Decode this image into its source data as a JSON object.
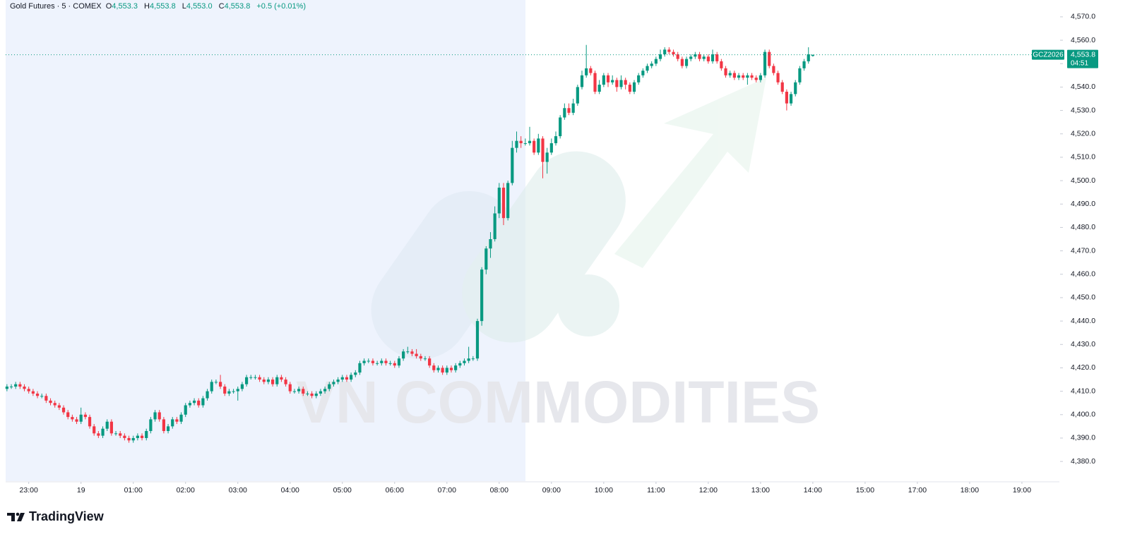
{
  "chart_data": {
    "type": "candlestick",
    "title": "Gold Futures · 5 · COMEX",
    "ohlc_names": [
      "O",
      "H",
      "L",
      "C"
    ],
    "ohlc_labels": [
      "4,553.3",
      "4,553.8",
      "4,553.0",
      "4,553.8"
    ],
    "change": "+0.5 (+0.01%)",
    "up_color": "#089981",
    "down_color": "#f23645",
    "symbol": "GCZ2026",
    "last_price_label": "4,553.8",
    "countdown": "04:51",
    "watermark": "VN COMMODITIES",
    "source": "TradingView",
    "xlim": [
      -0.3,
      241.6
    ],
    "xticks": [
      {
        "value": 5,
        "label": "23:00"
      },
      {
        "value": 17,
        "label": "19"
      },
      {
        "value": 29,
        "label": "01:00"
      },
      {
        "value": 41,
        "label": "02:00"
      },
      {
        "value": 53,
        "label": "03:00"
      },
      {
        "value": 65,
        "label": "04:00"
      },
      {
        "value": 77,
        "label": "05:00"
      },
      {
        "value": 89,
        "label": "06:00"
      },
      {
        "value": 101,
        "label": "07:00"
      },
      {
        "value": 113,
        "label": "08:00"
      },
      {
        "value": 125,
        "label": "09:00"
      },
      {
        "value": 137,
        "label": "10:00"
      },
      {
        "value": 149,
        "label": "11:00"
      },
      {
        "value": 161,
        "label": "12:00"
      },
      {
        "value": 173,
        "label": "13:00"
      },
      {
        "value": 185,
        "label": "14:00"
      },
      {
        "value": 197,
        "label": "15:00"
      },
      {
        "value": 209,
        "label": "17:00"
      },
      {
        "value": 221,
        "label": "18:00"
      },
      {
        "value": 233,
        "label": "19:00"
      }
    ],
    "ylim": [
      4371.6,
      4577.2
    ],
    "yticks": [
      {
        "value": 4380,
        "label": "4,380.0"
      },
      {
        "value": 4390,
        "label": "4,390.0"
      },
      {
        "value": 4400,
        "label": "4,400.0"
      },
      {
        "value": 4410,
        "label": "4,410.0"
      },
      {
        "value": 4420,
        "label": "4,420.0"
      },
      {
        "value": 4430,
        "label": "4,430.0"
      },
      {
        "value": 4440,
        "label": "4,440.0"
      },
      {
        "value": 4450,
        "label": "4,450.0"
      },
      {
        "value": 4460,
        "label": "4,460.0"
      },
      {
        "value": 4470,
        "label": "4,470.0"
      },
      {
        "value": 4480,
        "label": "4,480.0"
      },
      {
        "value": 4490,
        "label": "4,490.0"
      },
      {
        "value": 4500,
        "label": "4,500.0"
      },
      {
        "value": 4510,
        "label": "4,510.0"
      },
      {
        "value": 4520,
        "label": "4,520.0"
      },
      {
        "value": 4530,
        "label": "4,530.0"
      },
      {
        "value": 4540,
        "label": "4,540.0"
      },
      {
        "value": 4550,
        "label": "4,550.0"
      },
      {
        "value": 4560,
        "label": "4,560.0"
      },
      {
        "value": 4570,
        "label": "4,570.0"
      }
    ],
    "ohlc": [
      [
        4411,
        4413,
        4410,
        4412
      ],
      [
        4412,
        4413,
        4411,
        4412
      ],
      [
        4412,
        4414,
        4411,
        4413
      ],
      [
        4413,
        4414,
        4411,
        4412
      ],
      [
        4412,
        4413,
        4410,
        4411
      ],
      [
        4411,
        4412,
        4409,
        4410
      ],
      [
        4410,
        4411,
        4408,
        4409
      ],
      [
        4409,
        4410,
        4407,
        4408
      ],
      [
        4408,
        4409,
        4407,
        4408
      ],
      [
        4408,
        4409,
        4405,
        4406
      ],
      [
        4406,
        4407,
        4404,
        4405
      ],
      [
        4405,
        4406,
        4403,
        4404
      ],
      [
        4404,
        4405,
        4402,
        4403
      ],
      [
        4403,
        4404,
        4400,
        4401
      ],
      [
        4401,
        4402,
        4398,
        4399
      ],
      [
        4399,
        4400,
        4397,
        4398
      ],
      [
        4398,
        4399,
        4396,
        4397
      ],
      [
        4397,
        4403,
        4396,
        4400
      ],
      [
        4400,
        4401,
        4398,
        4399
      ],
      [
        4399,
        4400,
        4394,
        4395
      ],
      [
        4395,
        4396,
        4391,
        4392
      ],
      [
        4392,
        4393,
        4390,
        4391
      ],
      [
        4391,
        4395,
        4390,
        4394
      ],
      [
        4394,
        4398,
        4393,
        4397
      ],
      [
        4397,
        4398,
        4391,
        4392
      ],
      [
        4392,
        4393,
        4391,
        4392
      ],
      [
        4392,
        4393,
        4390,
        4391
      ],
      [
        4391,
        4392,
        4389,
        4390
      ],
      [
        4390,
        4391,
        4388,
        4389
      ],
      [
        4389,
        4391,
        4388,
        4390
      ],
      [
        4390,
        4392,
        4389,
        4391
      ],
      [
        4391,
        4392,
        4389,
        4390
      ],
      [
        4390,
        4394,
        4389,
        4393
      ],
      [
        4393,
        4399,
        4392,
        4398
      ],
      [
        4398,
        4402,
        4397,
        4401
      ],
      [
        4401,
        4402,
        4397,
        4398
      ],
      [
        4398,
        4399,
        4392,
        4393
      ],
      [
        4393,
        4396,
        4392,
        4395
      ],
      [
        4395,
        4399,
        4394,
        4398
      ],
      [
        4398,
        4399,
        4396,
        4397
      ],
      [
        4397,
        4401,
        4396,
        4400
      ],
      [
        4400,
        4405,
        4399,
        4404
      ],
      [
        4404,
        4406,
        4403,
        4405
      ],
      [
        4405,
        4407,
        4404,
        4406
      ],
      [
        4406,
        4407,
        4403,
        4404
      ],
      [
        4404,
        4408,
        4403,
        4407
      ],
      [
        4407,
        4411,
        4406,
        4410
      ],
      [
        4410,
        4415,
        4409,
        4414
      ],
      [
        4414,
        4415,
        4413,
        4414
      ],
      [
        4414,
        4417,
        4411,
        4412
      ],
      [
        4412,
        4413,
        4408,
        4409
      ],
      [
        4409,
        4411,
        4408,
        4410
      ],
      [
        4410,
        4411,
        4409,
        4410
      ],
      [
        4410,
        4412,
        4406,
        4411
      ],
      [
        4411,
        4414,
        4410,
        4413
      ],
      [
        4413,
        4417,
        4412,
        4416
      ],
      [
        4416,
        4417,
        4415,
        4416
      ],
      [
        4416,
        4417,
        4415,
        4416
      ],
      [
        4416,
        4417,
        4414,
        4415
      ],
      [
        4415,
        4416,
        4413,
        4414
      ],
      [
        4414,
        4416,
        4413,
        4415
      ],
      [
        4415,
        4416,
        4412,
        4413
      ],
      [
        4413,
        4417,
        4412,
        4416
      ],
      [
        4416,
        4417,
        4414,
        4415
      ],
      [
        4415,
        4416,
        4412,
        4413
      ],
      [
        4413,
        4414,
        4409,
        4410
      ],
      [
        4410,
        4411,
        4409,
        4410
      ],
      [
        4410,
        4412,
        4409,
        4411
      ],
      [
        4411,
        4412,
        4408,
        4409
      ],
      [
        4409,
        4410,
        4408,
        4409
      ],
      [
        4409,
        4410,
        4407,
        4408
      ],
      [
        4408,
        4410,
        4407,
        4409
      ],
      [
        4409,
        4411,
        4408,
        4410
      ],
      [
        4410,
        4412,
        4409,
        4411
      ],
      [
        4411,
        4414,
        4410,
        4413
      ],
      [
        4413,
        4415,
        4412,
        4414
      ],
      [
        4414,
        4416,
        4413,
        4415
      ],
      [
        4415,
        4417,
        4414,
        4416
      ],
      [
        4416,
        4417,
        4414,
        4415
      ],
      [
        4415,
        4418,
        4414,
        4417
      ],
      [
        4417,
        4419,
        4416,
        4418
      ],
      [
        4418,
        4423,
        4417,
        4422
      ],
      [
        4422,
        4424,
        4421,
        4423
      ],
      [
        4423,
        4424,
        4422,
        4423
      ],
      [
        4423,
        4424,
        4421,
        4422
      ],
      [
        4422,
        4423,
        4421,
        4422
      ],
      [
        4422,
        4424,
        4421,
        4423
      ],
      [
        4423,
        4424,
        4421,
        4422
      ],
      [
        4422,
        4423,
        4421,
        4422
      ],
      [
        4422,
        4423,
        4420,
        4421
      ],
      [
        4421,
        4425,
        4420,
        4424
      ],
      [
        4424,
        4428,
        4423,
        4427
      ],
      [
        4427,
        4429,
        4426,
        4427
      ],
      [
        4427,
        4428,
        4425,
        4426
      ],
      [
        4426,
        4428,
        4424,
        4425
      ],
      [
        4425,
        4426,
        4423,
        4424
      ],
      [
        4424,
        4425,
        4423,
        4424
      ],
      [
        4424,
        4425,
        4420,
        4421
      ],
      [
        4421,
        4422,
        4418,
        4419
      ],
      [
        4419,
        4421,
        4418,
        4420
      ],
      [
        4420,
        4421,
        4417,
        4418
      ],
      [
        4418,
        4421,
        4417,
        4420
      ],
      [
        4420,
        4421,
        4418,
        4419
      ],
      [
        4419,
        4422,
        4418,
        4421
      ],
      [
        4421,
        4423,
        4420,
        4422
      ],
      [
        4422,
        4424,
        4421,
        4423
      ],
      [
        4423,
        4429,
        4422,
        4424
      ],
      [
        4424,
        4425,
        4423,
        4424
      ],
      [
        4424,
        4441,
        4423,
        4440
      ],
      [
        4440,
        4463,
        4438,
        4462
      ],
      [
        4462,
        4472,
        4460,
        4471
      ],
      [
        4471,
        4478,
        4467,
        4475
      ],
      [
        4475,
        4489,
        4474,
        4486
      ],
      [
        4486,
        4499,
        4484,
        4497
      ],
      [
        4497,
        4499,
        4481,
        4484
      ],
      [
        4484,
        4500,
        4483,
        4499
      ],
      [
        4499,
        4517,
        4498,
        4514
      ],
      [
        4514,
        4521,
        4512,
        4517
      ],
      [
        4517,
        4519,
        4514,
        4516
      ],
      [
        4516,
        4518,
        4515,
        4516
      ],
      [
        4516,
        4523,
        4515,
        4517
      ],
      [
        4517,
        4518,
        4511,
        4512
      ],
      [
        4512,
        4520,
        4511,
        4518
      ],
      [
        4518,
        4519,
        4501,
        4508
      ],
      [
        4508,
        4514,
        4503,
        4512
      ],
      [
        4512,
        4518,
        4511,
        4516
      ],
      [
        4516,
        4521,
        4515,
        4519
      ],
      [
        4519,
        4528,
        4518,
        4527
      ],
      [
        4527,
        4533,
        4526,
        4531
      ],
      [
        4531,
        4533,
        4528,
        4529
      ],
      [
        4529,
        4535,
        4528,
        4533
      ],
      [
        4533,
        4541,
        4532,
        4540
      ],
      [
        4540,
        4547,
        4539,
        4545
      ],
      [
        4545,
        4558,
        4544,
        4548
      ],
      [
        4548,
        4549,
        4545,
        4546
      ],
      [
        4546,
        4547,
        4537,
        4538
      ],
      [
        4538,
        4543,
        4537,
        4541
      ],
      [
        4541,
        4546,
        4540,
        4545
      ],
      [
        4545,
        4546,
        4540,
        4542
      ],
      [
        4542,
        4545,
        4541,
        4543
      ],
      [
        4543,
        4544,
        4538,
        4540
      ],
      [
        4540,
        4545,
        4539,
        4543
      ],
      [
        4543,
        4544,
        4539,
        4541
      ],
      [
        4541,
        4542,
        4537,
        4538
      ],
      [
        4538,
        4543,
        4537,
        4542
      ],
      [
        4542,
        4546,
        4541,
        4545
      ],
      [
        4545,
        4548,
        4544,
        4547
      ],
      [
        4547,
        4550,
        4546,
        4549
      ],
      [
        4549,
        4551,
        4548,
        4550
      ],
      [
        4550,
        4553,
        4549,
        4552
      ],
      [
        4552,
        4556,
        4551,
        4554
      ],
      [
        4554,
        4557,
        4553,
        4556
      ],
      [
        4556,
        4557,
        4554,
        4555
      ],
      [
        4555,
        4556,
        4553,
        4554
      ],
      [
        4554,
        4555,
        4551,
        4552
      ],
      [
        4552,
        4553,
        4548,
        4549
      ],
      [
        4549,
        4553,
        4548,
        4552
      ],
      [
        4552,
        4554,
        4551,
        4553
      ],
      [
        4553,
        4555,
        4552,
        4554
      ],
      [
        4554,
        4555,
        4551,
        4552
      ],
      [
        4552,
        4554,
        4551,
        4553
      ],
      [
        4553,
        4554,
        4550,
        4551
      ],
      [
        4551,
        4556,
        4550,
        4554
      ],
      [
        4554,
        4555,
        4550,
        4551
      ],
      [
        4551,
        4552,
        4547,
        4548
      ],
      [
        4548,
        4549,
        4544,
        4545
      ],
      [
        4545,
        4547,
        4544,
        4546
      ],
      [
        4546,
        4547,
        4543,
        4544
      ],
      [
        4544,
        4546,
        4543,
        4545
      ],
      [
        4545,
        4546,
        4543,
        4544
      ],
      [
        4544,
        4546,
        4541,
        4545
      ],
      [
        4545,
        4546,
        4543,
        4544
      ],
      [
        4544,
        4545,
        4542,
        4543
      ],
      [
        4543,
        4546,
        4542,
        4545
      ],
      [
        4545,
        4556,
        4544,
        4555
      ],
      [
        4555,
        4556,
        4548,
        4549
      ],
      [
        4549,
        4550,
        4545,
        4546
      ],
      [
        4546,
        4547,
        4541,
        4542
      ],
      [
        4542,
        4543,
        4537,
        4538
      ],
      [
        4538,
        4539,
        4530,
        4533
      ],
      [
        4533,
        4538,
        4532,
        4537
      ],
      [
        4537,
        4543,
        4536,
        4542
      ],
      [
        4542,
        4549,
        4541,
        4548
      ],
      [
        4548,
        4552,
        4547,
        4551
      ],
      [
        4551,
        4557,
        4550,
        4554
      ],
      [
        4553.3,
        4553.8,
        4553.0,
        4553.8
      ]
    ]
  }
}
